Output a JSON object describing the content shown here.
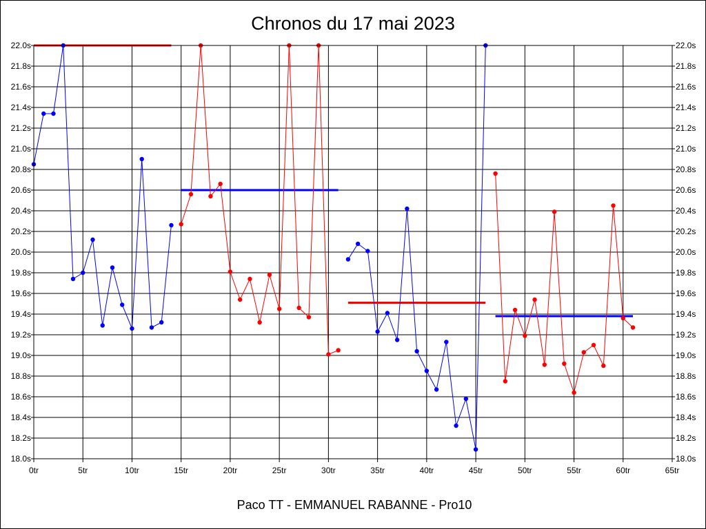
{
  "chart_data": {
    "type": "line",
    "title": "Chronos du 17 mai 2023",
    "subtitle": "Paco TT - EMMANUEL RABANNE - Pro10",
    "xlim": [
      0,
      65
    ],
    "ylim": [
      18.0,
      22.0
    ],
    "grid": true,
    "x_ticks": [
      0,
      5,
      10,
      15,
      20,
      25,
      30,
      35,
      40,
      45,
      50,
      55,
      60,
      65
    ],
    "x_tick_labels": [
      "0tr",
      "5tr",
      "10tr",
      "15tr",
      "20tr",
      "25tr",
      "30tr",
      "35tr",
      "40tr",
      "45tr",
      "50tr",
      "55tr",
      "60tr",
      "65tr"
    ],
    "y_ticks": [
      18.0,
      18.2,
      18.4,
      18.6,
      18.8,
      19.0,
      19.2,
      19.4,
      19.6,
      19.8,
      20.0,
      20.2,
      20.4,
      20.6,
      20.8,
      21.0,
      21.2,
      21.4,
      21.6,
      21.8,
      22.0
    ],
    "y_tick_labels": [
      "18.0s",
      "18.2s",
      "18.4s",
      "18.6s",
      "18.8s",
      "19.0s",
      "19.2s",
      "19.4s",
      "19.6s",
      "19.8s",
      "20.0s",
      "20.2s",
      "20.4s",
      "20.6s",
      "20.8s",
      "21.0s",
      "21.2s",
      "21.4s",
      "21.6s",
      "21.8s",
      "22.0s"
    ],
    "series": [
      {
        "color": "#0000ff",
        "x": [
          0,
          1,
          2,
          3,
          4,
          5,
          6,
          7,
          8,
          9,
          10,
          11,
          12,
          13,
          14
        ],
        "y": [
          20.85,
          21.34,
          21.34,
          22.0,
          19.74,
          19.8,
          20.12,
          19.29,
          19.85,
          19.49,
          19.26,
          20.9,
          19.27,
          19.32,
          20.26
        ]
      },
      {
        "color": "#ff0000",
        "x": [
          15,
          16,
          17,
          18,
          19,
          20,
          21,
          22,
          23,
          24,
          25,
          26,
          27,
          28,
          29,
          30,
          31
        ],
        "y": [
          20.27,
          20.56,
          22.0,
          20.54,
          20.66,
          19.81,
          19.54,
          19.74,
          19.32,
          19.78,
          19.45,
          22.0,
          19.46,
          19.37,
          22.0,
          19.01,
          19.05
        ]
      },
      {
        "color": "#0000ff",
        "x": [
          32,
          33,
          34,
          35,
          36,
          37,
          38,
          39,
          40,
          41,
          42,
          43,
          44,
          45,
          46
        ],
        "y": [
          19.93,
          20.08,
          20.01,
          19.23,
          19.41,
          19.15,
          20.42,
          19.04,
          18.85,
          18.67,
          19.13,
          18.32,
          18.58,
          18.09,
          22.0
        ]
      },
      {
        "color": "#ff0000",
        "x": [
          47,
          48,
          49,
          50,
          51,
          52,
          53,
          54,
          55,
          56,
          57,
          58,
          59,
          60,
          61
        ],
        "y": [
          20.76,
          18.75,
          19.44,
          19.19,
          19.54,
          18.91,
          20.39,
          18.92,
          18.64,
          19.03,
          19.1,
          18.9,
          20.45,
          19.36,
          19.27
        ]
      }
    ],
    "averages": [
      {
        "color": "#ff0000",
        "x": [
          0,
          14
        ],
        "y": 22.0
      },
      {
        "color": "#0000ff",
        "x": [
          15,
          31
        ],
        "y": 20.6
      },
      {
        "color": "#ff0000",
        "x": [
          32,
          46
        ],
        "y": 19.51
      },
      {
        "color": "#0000ff",
        "x": [
          47,
          61
        ],
        "y": 19.38
      }
    ]
  }
}
